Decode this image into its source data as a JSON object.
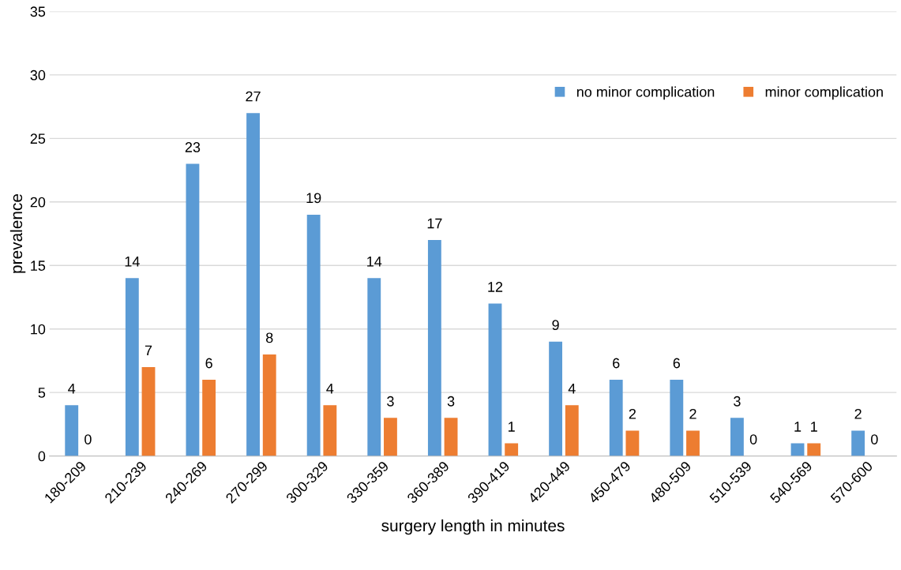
{
  "chart_data": {
    "type": "bar",
    "xlabel": "surgery length in minutes",
    "ylabel": "prevalence",
    "categories": [
      "180-209",
      "210-239",
      "240-269",
      "270-299",
      "300-329",
      "330-359",
      "360-389",
      "390-419",
      "420-449",
      "450-479",
      "480-509",
      "510-539",
      "540-569",
      "570-600"
    ],
    "series": [
      {
        "name": "no minor complication",
        "color": "#5b9bd5",
        "values": [
          4,
          14,
          23,
          27,
          19,
          14,
          17,
          12,
          9,
          6,
          6,
          3,
          1,
          2
        ]
      },
      {
        "name": "minor complication",
        "color": "#ed7d31",
        "values": [
          0,
          7,
          6,
          8,
          4,
          3,
          3,
          1,
          4,
          2,
          2,
          0,
          1,
          0
        ]
      }
    ],
    "ylim": [
      0,
      35
    ],
    "yticks": [
      0,
      5,
      10,
      15,
      20,
      25,
      30,
      35
    ],
    "grid": "y",
    "legend": "top right",
    "data_labels": true
  }
}
